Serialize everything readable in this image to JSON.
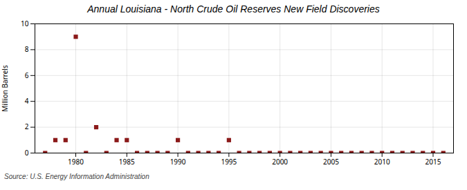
{
  "chart_data": {
    "type": "scatter",
    "title": "Annual Louisiana - North Crude Oil Reserves New Field Discoveries",
    "ylabel": "Million Barrels",
    "annotations": [
      "Source: U.S. Energy Information Administration"
    ],
    "color": "#8b1a1a",
    "marker": "square",
    "x": [
      1977,
      1978,
      1979,
      1980,
      1981,
      1982,
      1983,
      1984,
      1985,
      1986,
      1987,
      1988,
      1989,
      1990,
      1991,
      1992,
      1993,
      1994,
      1995,
      1996,
      1997,
      1998,
      1999,
      2000,
      2001,
      2002,
      2003,
      2004,
      2005,
      2006,
      2007,
      2008,
      2009,
      2010,
      2011,
      2012,
      2013,
      2014,
      2015,
      2016
    ],
    "values": [
      0.0,
      1.0,
      1.0,
      9.0,
      0.0,
      2.0,
      0.0,
      1.0,
      1.0,
      0.0,
      0.0,
      0.0,
      0.0,
      1.0,
      0.0,
      0.0,
      0.0,
      0.0,
      1.0,
      0.0,
      0.0,
      0.0,
      0.0,
      0.0,
      0.0,
      0.0,
      0.0,
      0.0,
      0.0,
      0.0,
      0.0,
      0.0,
      0.0,
      0.0,
      0.0,
      0.0,
      0.0,
      0.0,
      0.0,
      0.0
    ],
    "xlim": [
      1976,
      2017
    ],
    "ylim": [
      0,
      10
    ],
    "xticks": [
      1980,
      1985,
      1990,
      1995,
      2000,
      2005,
      2010,
      2015
    ],
    "yticks": [
      0,
      2,
      4,
      6,
      8,
      10
    ],
    "grid": true
  }
}
